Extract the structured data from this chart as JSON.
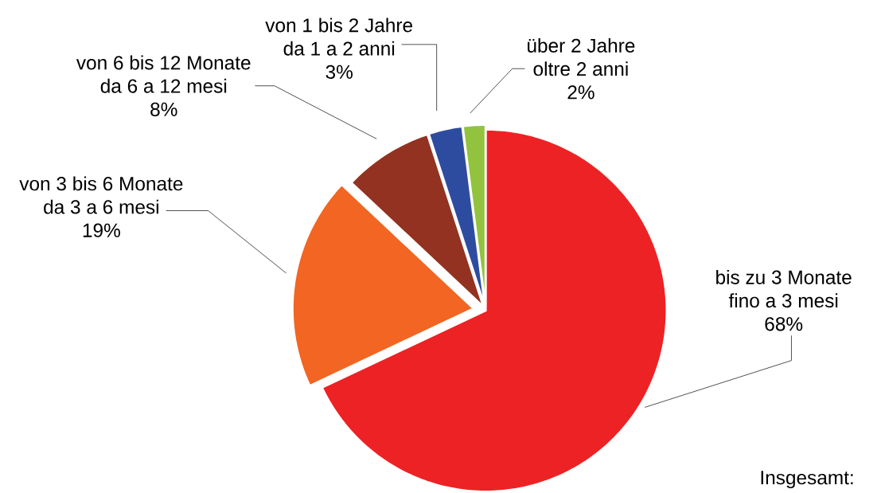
{
  "chart_data": {
    "type": "pie",
    "categories": [
      "bis zu 3 Monate\nfino a 3 mesi",
      "von 3 bis 6 Monate\nda 3 a 6 mesi",
      "von 6 bis 12 Monate\nda 6 a 12 mesi",
      "von 1 bis 2 Jahre\nda 1 a 2 anni",
      "über 2 Jahre\noltre 2 anni"
    ],
    "values": [
      68,
      19,
      8,
      3,
      2
    ],
    "colors": [
      "#ed2224",
      "#f26522",
      "#933220",
      "#2e4c9f",
      "#92c33e"
    ],
    "value_labels": [
      "68%",
      "19%",
      "8%",
      "3%",
      "2%"
    ],
    "annotations": [
      "Insgesamt:"
    ]
  }
}
